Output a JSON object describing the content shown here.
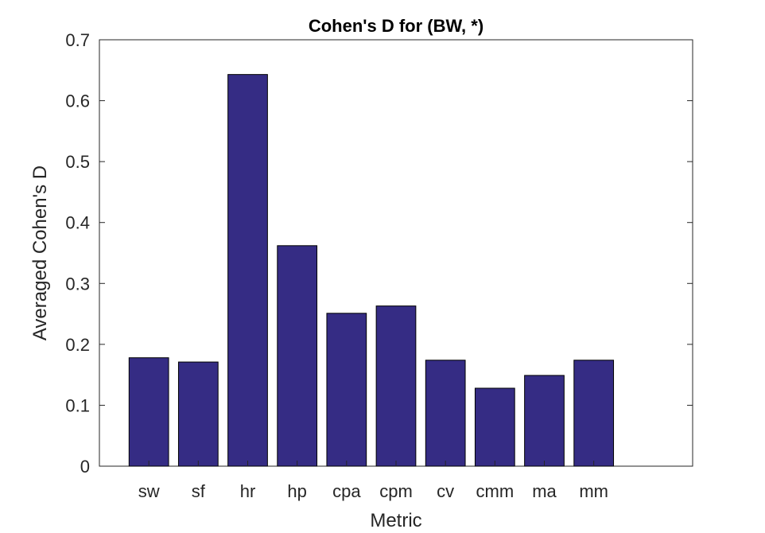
{
  "chart_data": {
    "type": "bar",
    "title": "Cohen's D for (BW, *)",
    "xlabel": "Metric",
    "ylabel": "Averaged Cohen's D",
    "categories": [
      "sw",
      "sf",
      "hr",
      "hp",
      "cpa",
      "cpm",
      "cv",
      "cmm",
      "ma",
      "mm"
    ],
    "values": [
      0.178,
      0.171,
      0.643,
      0.362,
      0.251,
      0.263,
      0.174,
      0.128,
      0.149,
      0.174
    ],
    "ylim": [
      0,
      0.7
    ],
    "xlim": [
      0,
      12
    ],
    "yticks": [
      "0",
      "0.1",
      "0.2",
      "0.3",
      "0.4",
      "0.5",
      "0.6",
      "0.7"
    ],
    "grid": false,
    "legend": "none",
    "bar_color": "#352c84"
  }
}
